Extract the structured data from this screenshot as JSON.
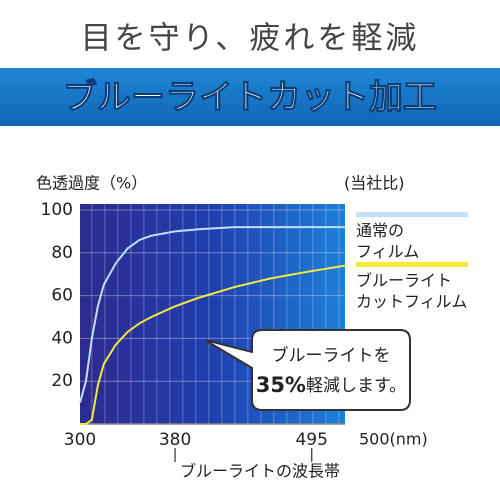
{
  "header": {
    "title": "目を守り、疲れを軽減",
    "banner": "ブルーライトカット加工"
  },
  "chart_data": {
    "type": "line",
    "y_label": "色透過度（%）",
    "note": "(当社比)",
    "x_label": "ブルーライトの波長帯",
    "xlim": [
      300,
      523
    ],
    "xticks": [
      300,
      380,
      495,
      {
        "value": 500,
        "label": "500(nm)"
      }
    ],
    "ylim": [
      0,
      100
    ],
    "yticks": [
      20,
      40,
      60,
      80,
      100
    ],
    "grid": true,
    "x": [
      300,
      305,
      310,
      315,
      320,
      330,
      340,
      350,
      360,
      380,
      400,
      430,
      460,
      490,
      523
    ],
    "series": [
      {
        "name": "通常の\nフィルム",
        "color": "#bfe0f7",
        "values": [
          10,
          20,
          40,
          55,
          65,
          75,
          82,
          86,
          88,
          90,
          91,
          92,
          92,
          92,
          92
        ]
      },
      {
        "name": "ブルーライト\nカットフィルム",
        "color": "#f2ea3c",
        "values": [
          0,
          0,
          2,
          18,
          28,
          37,
          43,
          47,
          50,
          55,
          59,
          64,
          68,
          71,
          74
        ]
      }
    ],
    "annotation": {
      "line1": "ブルーライトを",
      "highlight": "35%",
      "rest": "軽減します。"
    }
  }
}
